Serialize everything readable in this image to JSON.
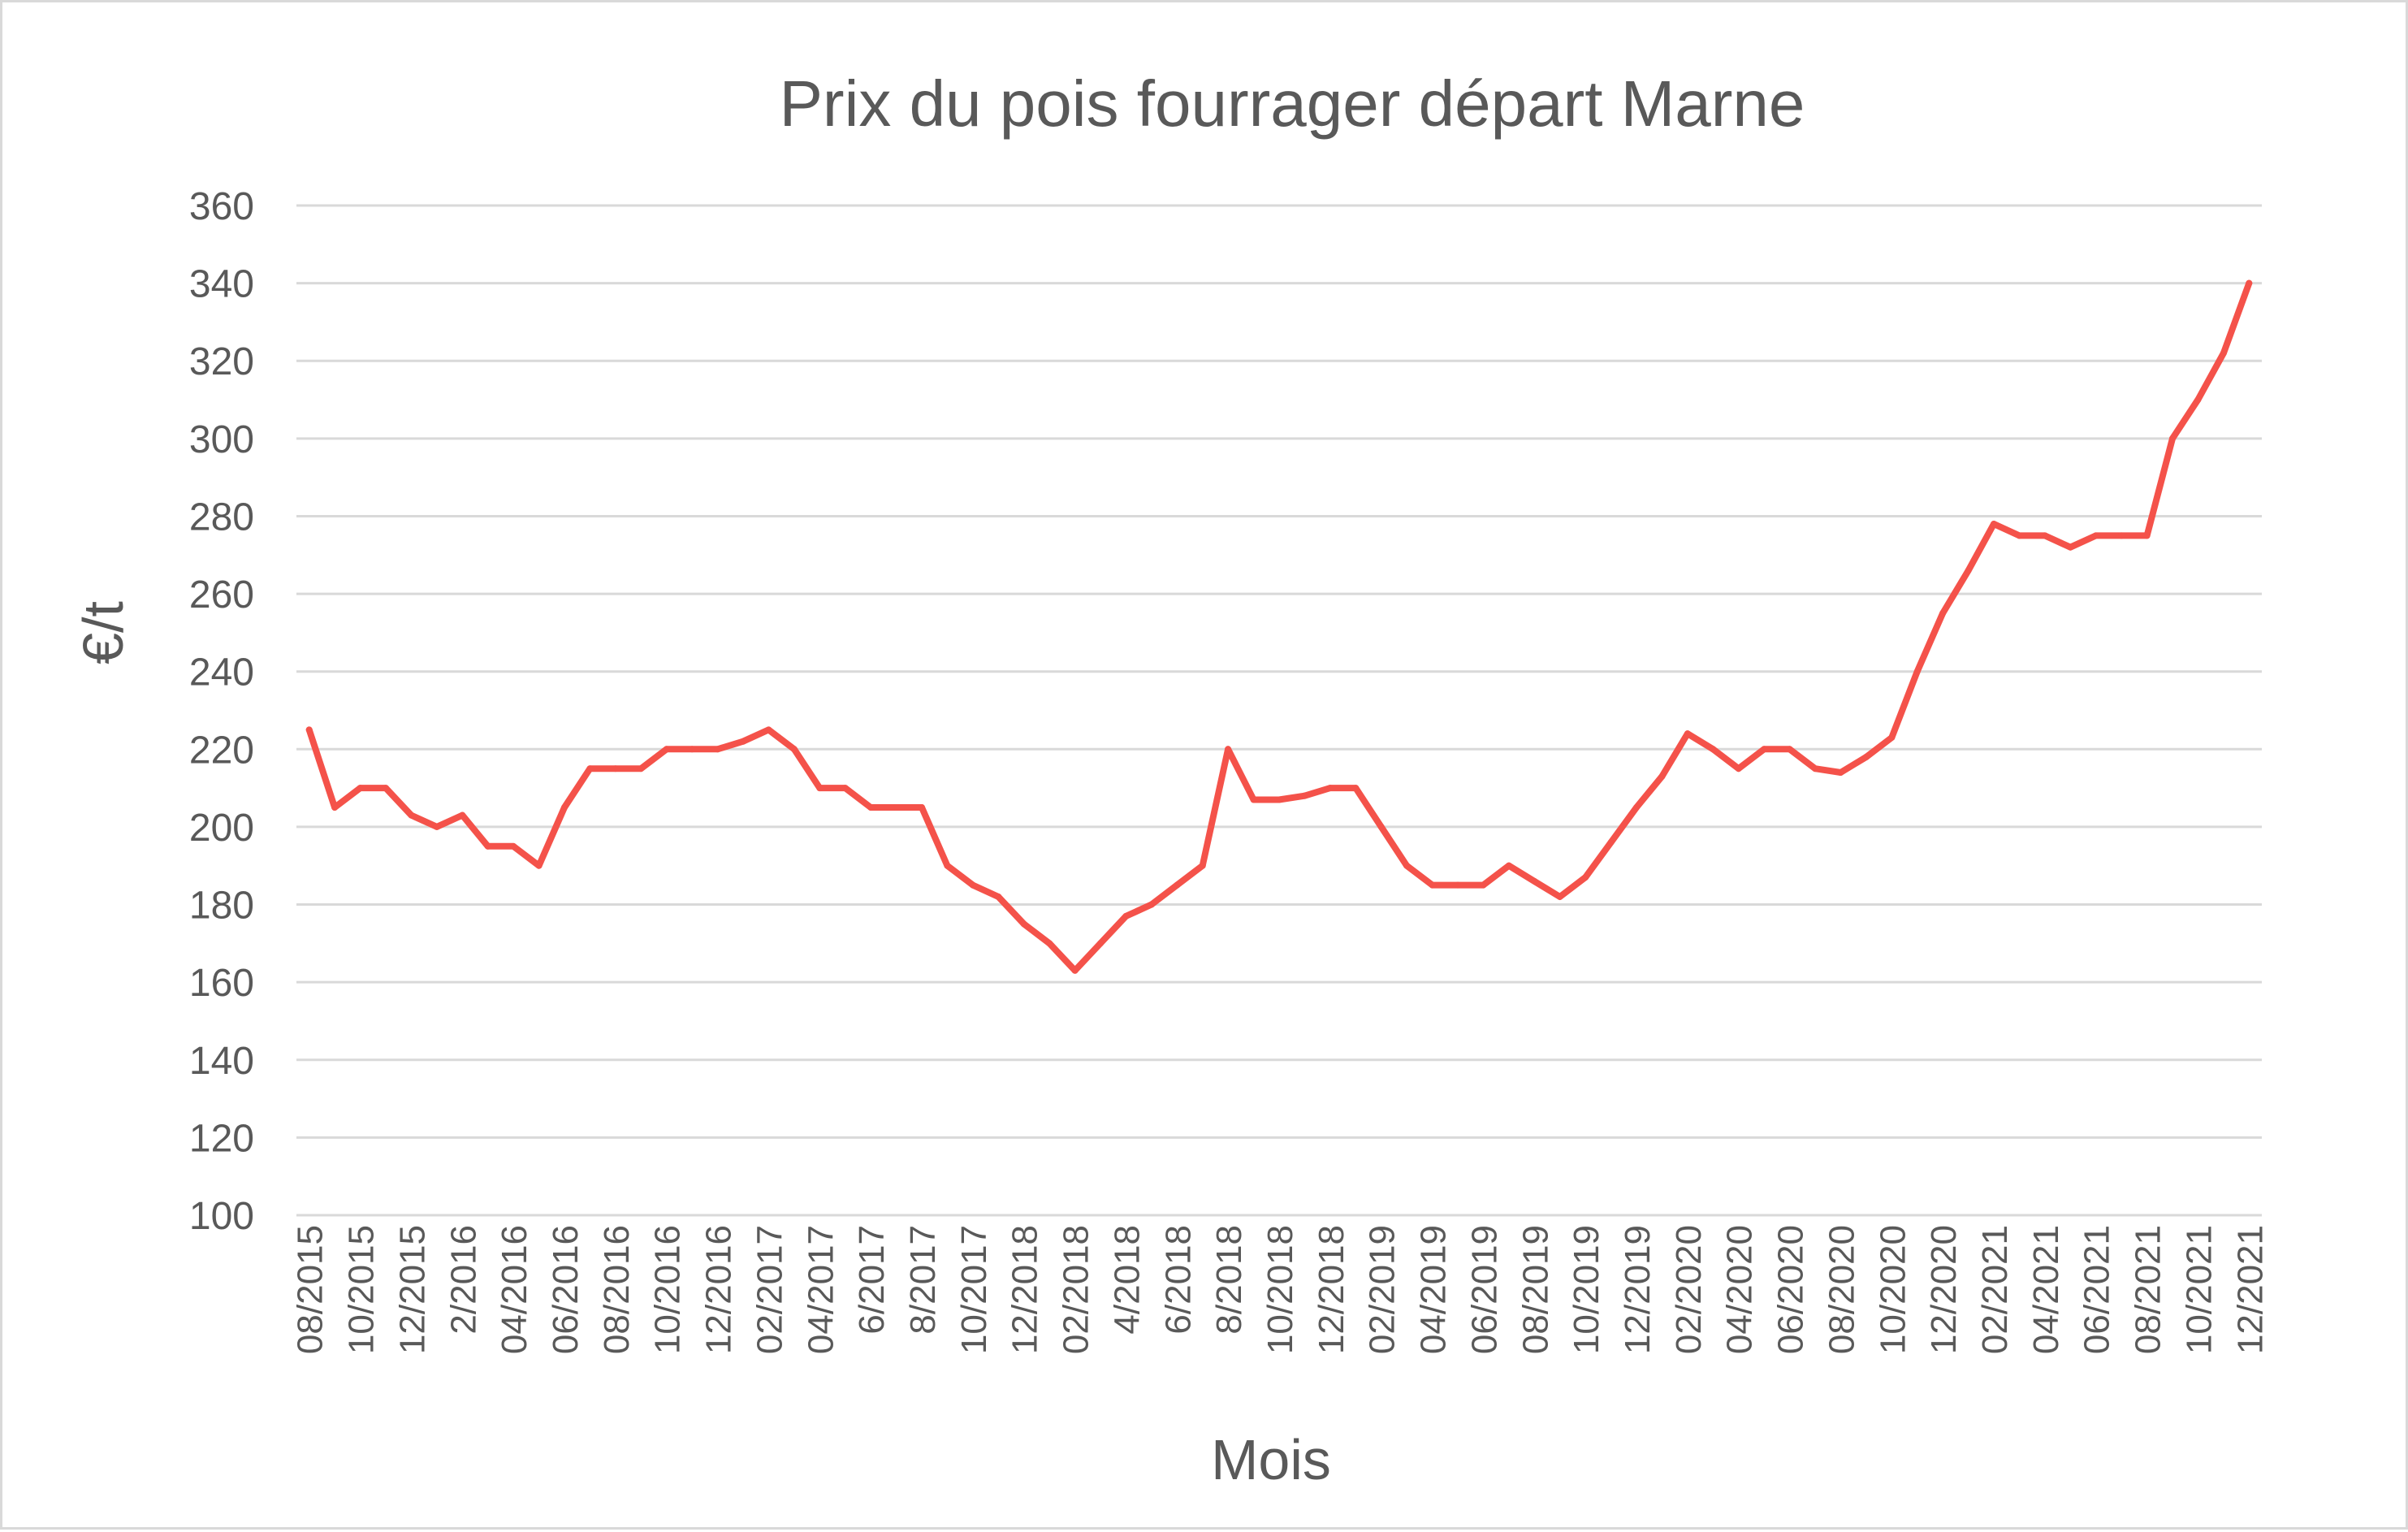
{
  "chart_data": {
    "type": "line",
    "title": "Prix du pois fourrager départ Marne",
    "xlabel": "Mois",
    "ylabel": "€/t",
    "ylim": [
      100,
      360
    ],
    "yticks": [
      100,
      120,
      140,
      160,
      180,
      200,
      220,
      240,
      260,
      280,
      300,
      320,
      340,
      360
    ],
    "grid": true,
    "legend": "none",
    "line_color": "#f4524a",
    "grid_color": "#d9d9d9",
    "text_color": "#595959",
    "x": [
      "08/2015",
      "09/2015",
      "10/2015",
      "11/2015",
      "12/2015",
      "1/2016",
      "2/2016",
      "3/2016",
      "04/2016",
      "05/2016",
      "06/2016",
      "07/2016",
      "08/2016",
      "09/2016",
      "10/2016",
      "11/2016",
      "12/2016",
      "01/2017",
      "02/2017",
      "03/2017",
      "04/2017",
      "05/2017",
      "6/2017",
      "7/2017",
      "8/2017",
      "9/2017",
      "10/2017",
      "11/2017",
      "12/2018",
      "01/2018",
      "02/2018",
      "3/2018",
      "4/2018",
      "5/2018",
      "6/2018",
      "7/2018",
      "8/2018",
      "9/2018",
      "10/2018",
      "11/2018",
      "12/2018",
      "01/2019",
      "02/2019",
      "03/2019",
      "04/2019",
      "05/2019",
      "06/2019",
      "07/2019",
      "08/2019",
      "09/2019",
      "10/2019",
      "11/2019",
      "12/2019",
      "01/2020",
      "02/2020",
      "03/2020",
      "04/2020",
      "05/2020",
      "06/2020",
      "07/2020",
      "08/2020",
      "09/2020",
      "10/2020",
      "11/2020",
      "12/2020",
      "01/2021",
      "02/2021",
      "03/2021",
      "04/2021",
      "05/2021",
      "06/2021",
      "07/2021",
      "08/2021",
      "09/2021",
      "10/2021",
      "11/2021",
      "12/2021"
    ],
    "xtick_labels": [
      "08/2015",
      "10/2015",
      "12/2015",
      "2/2016",
      "04/2016",
      "06/2016",
      "08/2016",
      "10/2016",
      "12/2016",
      "02/2017",
      "04/2017",
      "6/2017",
      "8/2017",
      "10/2017",
      "12/2018",
      "02/2018",
      "4/2018",
      "6/2018",
      "8/2018",
      "10/2018",
      "12/2018",
      "02/2019",
      "04/2019",
      "06/2019",
      "08/2019",
      "10/2019",
      "12/2019",
      "02/2020",
      "04/2020",
      "06/2020",
      "08/2020",
      "10/2020",
      "12/2020",
      "02/2021",
      "04/2021",
      "06/2021",
      "08/2021",
      "10/2021",
      "12/2021"
    ],
    "values": [
      225,
      205,
      210,
      210,
      203,
      200,
      203,
      195,
      195,
      190,
      205,
      215,
      215,
      215,
      220,
      220,
      220,
      222,
      225,
      220,
      210,
      210,
      205,
      205,
      205,
      190,
      185,
      182,
      175,
      170,
      163,
      170,
      177,
      180,
      185,
      190,
      220,
      207,
      207,
      208,
      210,
      210,
      200,
      190,
      185,
      185,
      185,
      190,
      186,
      182,
      187,
      196,
      205,
      213,
      224,
      220,
      215,
      220,
      220,
      215,
      214,
      218,
      223,
      240,
      255,
      266,
      278,
      275,
      275,
      272,
      275,
      275,
      275,
      300,
      310,
      322,
      340
    ]
  }
}
